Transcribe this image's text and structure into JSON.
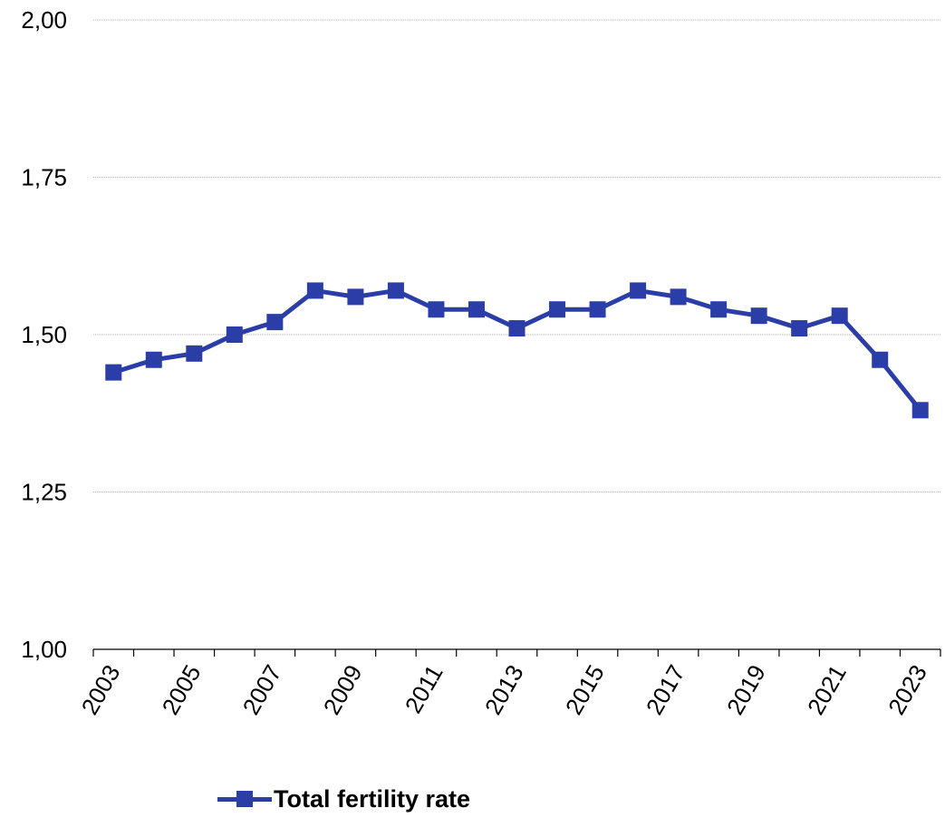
{
  "chart_data": {
    "type": "line",
    "title": "",
    "xlabel": "",
    "ylabel": "",
    "ylim": [
      1.0,
      2.0
    ],
    "yticks": [
      "1,00",
      "1,25",
      "1,50",
      "1,75",
      "2,00"
    ],
    "x": [
      2003,
      2004,
      2005,
      2006,
      2007,
      2008,
      2009,
      2010,
      2011,
      2012,
      2013,
      2014,
      2015,
      2016,
      2017,
      2018,
      2019,
      2020,
      2021,
      2022,
      2023
    ],
    "xtick_labels": [
      "2003",
      "2005",
      "2007",
      "2009",
      "2011",
      "2013",
      "2015",
      "2017",
      "2019",
      "2021",
      "2023"
    ],
    "series": [
      {
        "name": "Total fertility rate",
        "color": "#2b3ea8",
        "values": [
          1.44,
          1.46,
          1.47,
          1.5,
          1.52,
          1.57,
          1.56,
          1.57,
          1.54,
          1.54,
          1.51,
          1.54,
          1.54,
          1.57,
          1.56,
          1.54,
          1.53,
          1.51,
          1.53,
          1.46,
          1.38
        ]
      }
    ],
    "grid": true,
    "legend_position": "bottom"
  },
  "legend": {
    "label": "Total fertility rate"
  }
}
